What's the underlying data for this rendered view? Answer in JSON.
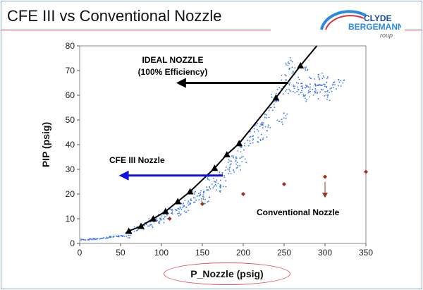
{
  "slide": {
    "title": "CFE III vs Conventional Nozzle",
    "logo": "CLYDE BERGEMANN Group"
  },
  "chart_data": {
    "type": "scatter",
    "xlabel": "P_Nozzle (psig)",
    "ylabel": "PIP (psig)",
    "xlim": [
      0,
      350
    ],
    "ylim": [
      0,
      80
    ],
    "xticks": [
      0,
      50,
      100,
      150,
      200,
      250,
      300,
      350
    ],
    "yticks": [
      0,
      10,
      20,
      30,
      40,
      50,
      60,
      70,
      80
    ],
    "grid": false,
    "annotations": {
      "ideal": "IDEAL NOZZLE",
      "ideal_sub": "(100% Efficiency)",
      "cfe": "CFE III Nozzle",
      "conventional": "Conventional Nozzle"
    },
    "colors": {
      "ideal": "#000000",
      "cfe": "#3a78f0",
      "conventional": "#a0301a",
      "cfe_arrow": "#1010e0"
    },
    "ideal_nozzle": {
      "x": [
        60,
        75,
        90,
        105,
        120,
        135,
        165,
        180,
        195,
        240,
        270
      ],
      "y": [
        5,
        7,
        10,
        13,
        17,
        21,
        30.5,
        36,
        40.5,
        59,
        72
      ],
      "line_end": [
        290,
        80
      ]
    },
    "conventional_nozzle": {
      "x": [
        110,
        150,
        200,
        250,
        300,
        350
      ],
      "y": [
        10,
        16,
        20,
        24,
        27,
        29
      ]
    },
    "cfe_iii_nozzle": [
      [
        5,
        1.5
      ],
      [
        10,
        1.6
      ],
      [
        15,
        1.7
      ],
      [
        20,
        1.8
      ],
      [
        25,
        2
      ],
      [
        30,
        2.2
      ],
      [
        35,
        2.4
      ],
      [
        40,
        2.6
      ],
      [
        45,
        2.8
      ],
      [
        50,
        3
      ],
      [
        55,
        3.1
      ],
      [
        60,
        3.5
      ],
      [
        65,
        4.5
      ],
      [
        70,
        5.5
      ],
      [
        75,
        6
      ],
      [
        78,
        7.5
      ],
      [
        85,
        8.5
      ],
      [
        90,
        9
      ],
      [
        95,
        10
      ],
      [
        100,
        11
      ],
      [
        105,
        11.5
      ],
      [
        110,
        12.5
      ],
      [
        115,
        13
      ],
      [
        120,
        14
      ],
      [
        125,
        15
      ],
      [
        130,
        16
      ],
      [
        135,
        17
      ],
      [
        140,
        18
      ],
      [
        145,
        19
      ],
      [
        150,
        20
      ],
      [
        155,
        21.5
      ],
      [
        160,
        22
      ],
      [
        165,
        24
      ],
      [
        170,
        25
      ],
      [
        175,
        28
      ],
      [
        180,
        30
      ],
      [
        185,
        33
      ],
      [
        190,
        34
      ],
      [
        195,
        36
      ],
      [
        200,
        39
      ],
      [
        205,
        41
      ],
      [
        210,
        44
      ],
      [
        215,
        47
      ],
      [
        220,
        48
      ],
      [
        225,
        49
      ],
      [
        230,
        52
      ],
      [
        235,
        55
      ],
      [
        240,
        57
      ],
      [
        245,
        62
      ],
      [
        250,
        67
      ],
      [
        255,
        72
      ],
      [
        258,
        74
      ],
      [
        262,
        70
      ],
      [
        268,
        66
      ],
      [
        255,
        61
      ],
      [
        265,
        62
      ],
      [
        270,
        63
      ],
      [
        275,
        64
      ],
      [
        280,
        62
      ],
      [
        285,
        63
      ],
      [
        290,
        64
      ],
      [
        295,
        65
      ],
      [
        300,
        63
      ],
      [
        305,
        62
      ],
      [
        310,
        64
      ],
      [
        315,
        65
      ],
      [
        320,
        65
      ],
      [
        278,
        59
      ],
      [
        288,
        60
      ],
      [
        298,
        61
      ],
      [
        260,
        65
      ],
      [
        270,
        60
      ],
      [
        285,
        66
      ],
      [
        300,
        66
      ],
      [
        230,
        47
      ],
      [
        215,
        42
      ],
      [
        200,
        34
      ],
      [
        185,
        29
      ],
      [
        170,
        22
      ],
      [
        150,
        17
      ],
      [
        130,
        14
      ],
      [
        160,
        27
      ],
      [
        140,
        20
      ],
      [
        120,
        12
      ],
      [
        100,
        9.5
      ],
      [
        88,
        8
      ],
      [
        250,
        52
      ],
      [
        245,
        49
      ],
      [
        238,
        60
      ],
      [
        275,
        70
      ],
      [
        295,
        68
      ],
      [
        305,
        59
      ],
      [
        225,
        43
      ],
      [
        195,
        31
      ],
      [
        175,
        24
      ],
      [
        155,
        18
      ]
    ]
  }
}
